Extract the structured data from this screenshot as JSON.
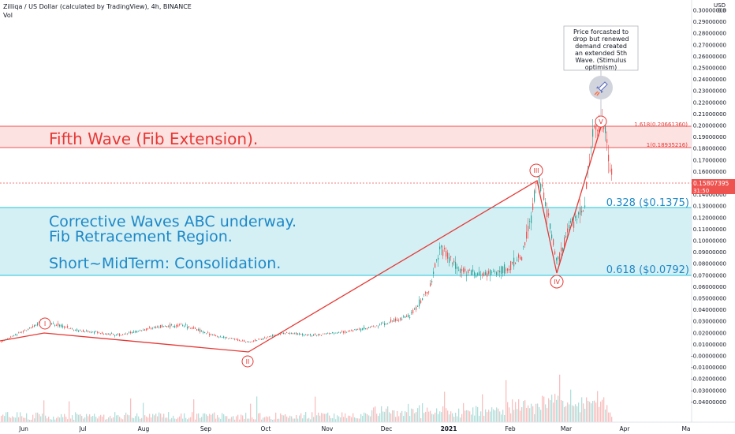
{
  "header": {
    "title": "Zilliqa / US Dollar (calculated by TradingView), 4h, BINANCE",
    "volume_label": "Vol"
  },
  "chart_data": {
    "type": "candlestick",
    "title": "Zilliqa / US Dollar (calculated by TradingView), 4h, BINANCE",
    "currency_label": "USD",
    "x_tick_labels": [
      "Jun",
      "Jul",
      "Aug",
      "Sep",
      "Oct",
      "Nov",
      "Dec",
      "2021",
      "Feb",
      "Mar",
      "Apr",
      "Ma"
    ],
    "y_tick_labels": [
      "0.3",
      "0.30000000",
      "0.29000000",
      "0.28000000",
      "0.27000000",
      "0.26000000",
      "0.25000000",
      "0.24000000",
      "0.23000000",
      "0.22000000",
      "0.21000000",
      "0.20000000",
      "0.19000000",
      "0.18000000",
      "0.17000000",
      "0.16000000",
      "0.14000000",
      "0.13000000",
      "0.12000000",
      "0.11000000",
      "0.10000000",
      "0.09000000",
      "0.08000000",
      "0.07000000",
      "0.06000000",
      "0.05000000",
      "0.04000000",
      "0.03000000",
      "0.02000000",
      "0.01000000",
      "-0.00000000",
      "-0.01000000",
      "-0.02000000",
      "-0.03000000",
      "-0.04000000"
    ],
    "ylim": [
      -0.04,
      0.31
    ],
    "price_path": [
      [
        "Jun",
        0.012
      ],
      [
        "Jun",
        0.025
      ],
      [
        "Jul",
        0.022
      ],
      [
        "Jul",
        0.018
      ],
      [
        "Aug",
        0.021
      ],
      [
        "Aug",
        0.026
      ],
      [
        "Sep",
        0.019
      ],
      [
        "Sep",
        0.014
      ],
      [
        "Oct",
        0.018
      ],
      [
        "Oct",
        0.02
      ],
      [
        "Nov",
        0.019
      ],
      [
        "Nov",
        0.021
      ],
      [
        "Dec",
        0.028
      ],
      [
        "Dec",
        0.038
      ],
      [
        "Dec",
        0.062
      ],
      [
        "2021",
        0.09
      ],
      [
        "2021",
        0.072
      ],
      [
        "2021",
        0.066
      ],
      [
        "Feb",
        0.072
      ],
      [
        "Feb",
        0.092
      ],
      [
        "Feb",
        0.15
      ],
      [
        "Feb",
        0.12
      ],
      [
        "Mar",
        0.1
      ],
      [
        "Mar",
        0.13
      ],
      [
        "Mar",
        0.2
      ],
      [
        "Mar",
        0.18
      ],
      [
        "Mar",
        0.158
      ]
    ],
    "last_price": "0.15807395",
    "countdown": "31:50",
    "wave_labels": [
      "I",
      "II",
      "III",
      "IV",
      "V"
    ],
    "wave_points": [
      0.03,
      0.012,
      0.16,
      0.0792,
      0.206
    ]
  },
  "annotations": {
    "fifth_wave": "Fifth Wave (Fib Extension).",
    "corrective_line1": "Corrective Waves ABC underway.",
    "corrective_line2": "Fib Retracement Region.",
    "corrective_line3": "Short~MidTerm: Consolidation.",
    "fib_1618": "1.618(0.20661360)",
    "fib_1": "1(0.18935216)",
    "fib_0328": "0.328 ($0.1375)",
    "fib_0618": "0.618 ($0.0792)",
    "callout": "Price forcasted to drop but renewed demand created an extended 5th Wave. (Stimulus optimism)"
  },
  "colors": {
    "up_candle": "#26a69a",
    "down_candle": "#ef5350",
    "wave_line": "#e53935",
    "fib_red_fill": "#fde2e2",
    "fib_cyan_fill": "#d4f0f5",
    "fib_cyan_text": "#1e88c7",
    "last_price_tag": "#ef5350"
  },
  "icons": {
    "callout_icon": "rocket-icon"
  }
}
